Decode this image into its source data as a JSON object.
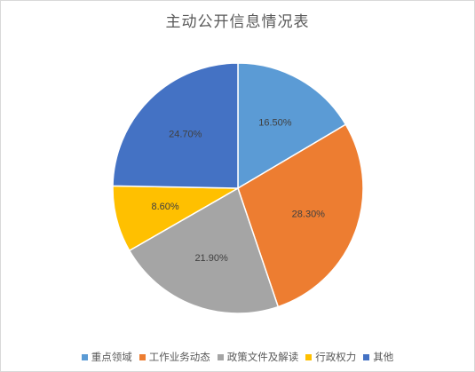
{
  "chart_data": {
    "type": "pie",
    "title": "主动公开信息情况表",
    "categories": [
      "重点领域",
      "工作业务动态",
      "政策文件及解读",
      "行政权力",
      "其他"
    ],
    "values": [
      16.5,
      28.3,
      21.9,
      8.6,
      24.7
    ],
    "labels": [
      "16.50%",
      "28.30%",
      "21.90%",
      "8.60%",
      "24.70%"
    ],
    "colors": [
      "#5b9bd5",
      "#ed7d31",
      "#a5a5a5",
      "#ffc000",
      "#4472c4"
    ],
    "start_angle_deg": 0,
    "direction": "clockwise",
    "legend_position": "bottom"
  }
}
